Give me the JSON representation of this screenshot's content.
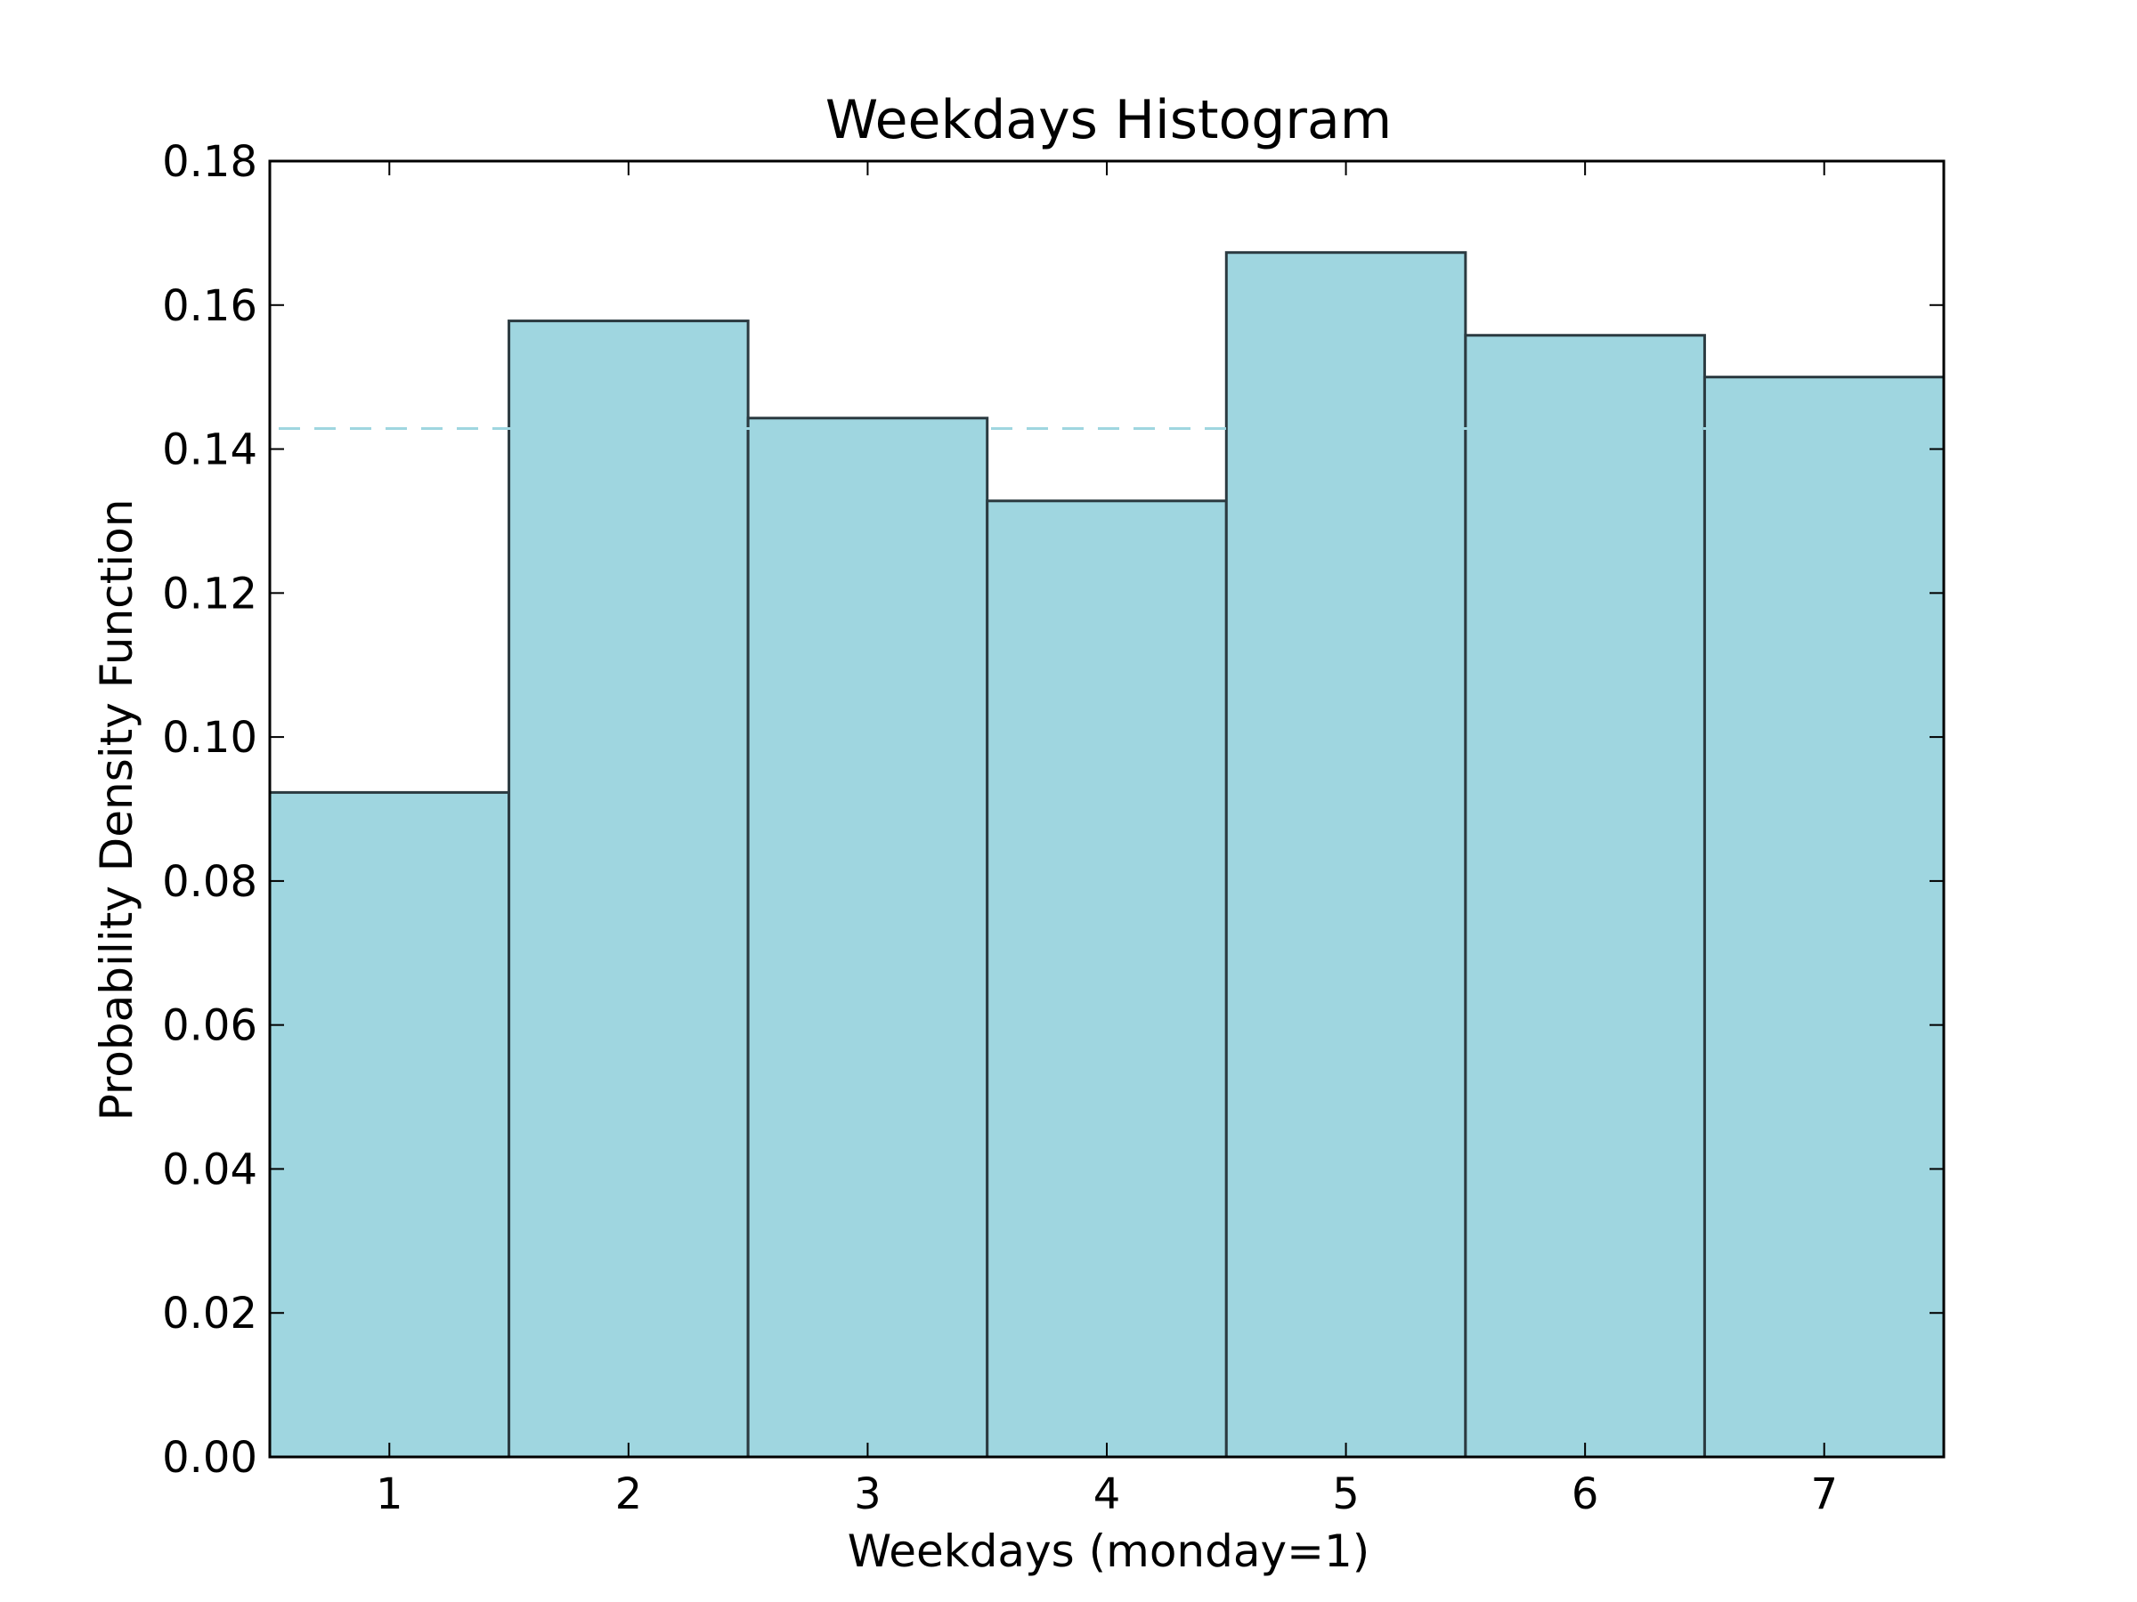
{
  "chart_data": {
    "type": "bar",
    "title": "Weekdays Histogram",
    "xlabel": "Weekdays (monday=1)",
    "ylabel": "Probability Density Function",
    "categories": [
      "1",
      "2",
      "3",
      "4",
      "5",
      "6",
      "7"
    ],
    "values": [
      0.0923,
      0.1578,
      0.1443,
      0.1328,
      0.1673,
      0.1558,
      0.15
    ],
    "xlim": [
      0.5,
      7.5
    ],
    "ylim": [
      0,
      0.18
    ],
    "yticks": [
      0.0,
      0.02,
      0.04,
      0.06,
      0.08,
      0.1,
      0.12,
      0.14,
      0.16,
      0.18
    ],
    "ytick_labels": [
      "0.00",
      "0.02",
      "0.04",
      "0.06",
      "0.08",
      "0.10",
      "0.12",
      "0.14",
      "0.16",
      "0.18"
    ],
    "xticks": [
      1,
      2,
      3,
      4,
      5,
      6,
      7
    ],
    "reference_line": {
      "y": 0.142857,
      "style": "dashed"
    },
    "grid": false,
    "colors": {
      "bar_fill": "#9fd6e0",
      "bar_edge": "#2b3a40",
      "reference_line": "#9fd6e0",
      "axes": "#000000"
    }
  }
}
